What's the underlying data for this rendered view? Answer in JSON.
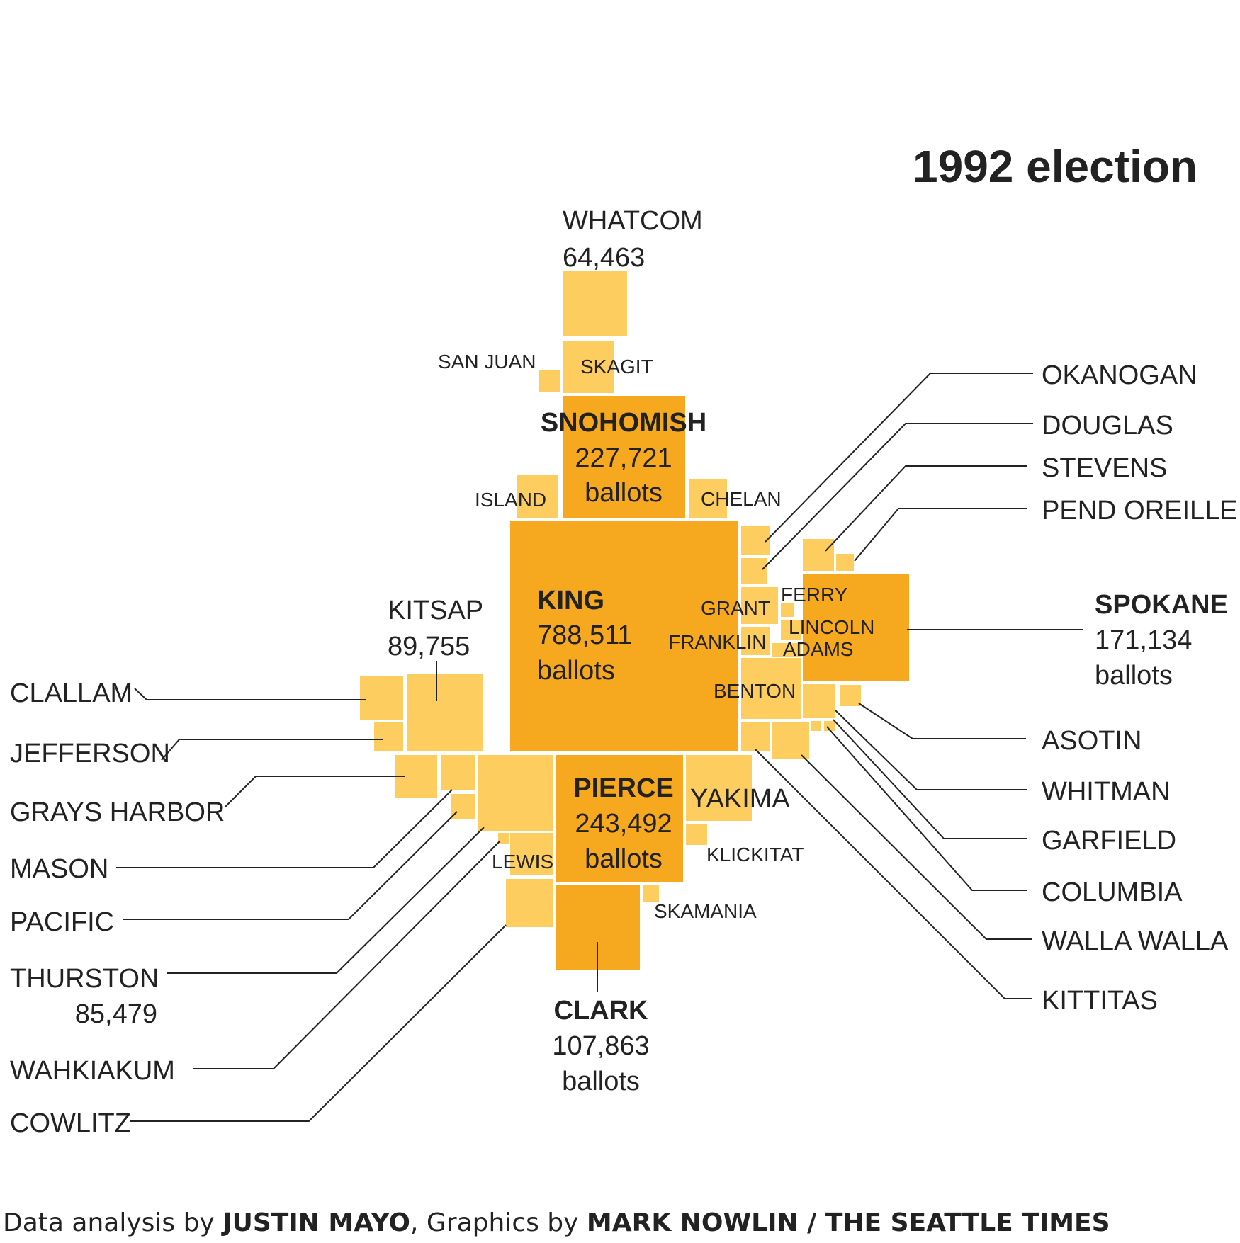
{
  "title": "1992 election",
  "colors": {
    "light": "#fdcd5f",
    "dark": "#f6a81f",
    "text": "#222222"
  },
  "counties": [
    {
      "id": "whatcom",
      "name": "WHATCOM",
      "value": "64,463"
    },
    {
      "id": "skagit",
      "name": "SKAGIT"
    },
    {
      "id": "san-juan",
      "name": "SAN JUAN"
    },
    {
      "id": "snohomish",
      "name": "SNOHOMISH",
      "value": "227,721",
      "unit": "ballots"
    },
    {
      "id": "island",
      "name": "ISLAND"
    },
    {
      "id": "chelan",
      "name": "CHELAN"
    },
    {
      "id": "king",
      "name": "KING",
      "value": "788,511",
      "unit": "ballots"
    },
    {
      "id": "kitsap",
      "name": "KITSAP",
      "value": "89,755"
    },
    {
      "id": "clallam",
      "name": "CLALLAM"
    },
    {
      "id": "jefferson",
      "name": "JEFFERSON"
    },
    {
      "id": "grays-harbor",
      "name": "GRAYS HARBOR"
    },
    {
      "id": "mason",
      "name": "MASON"
    },
    {
      "id": "pacific",
      "name": "PACIFIC"
    },
    {
      "id": "thurston",
      "name": "THURSTON",
      "value": "85,479"
    },
    {
      "id": "wahkiakum",
      "name": "WAHKIAKUM"
    },
    {
      "id": "cowlitz",
      "name": "COWLITZ"
    },
    {
      "id": "lewis",
      "name": "LEWIS"
    },
    {
      "id": "pierce",
      "name": "PIERCE",
      "value": "243,492",
      "unit": "ballots"
    },
    {
      "id": "yakima",
      "name": "YAKIMA"
    },
    {
      "id": "klickitat",
      "name": "KLICKITAT"
    },
    {
      "id": "skamania",
      "name": "SKAMANIA"
    },
    {
      "id": "clark",
      "name": "CLARK",
      "value": "107,863",
      "unit": "ballots"
    },
    {
      "id": "okanogan",
      "name": "OKANOGAN"
    },
    {
      "id": "douglas",
      "name": "DOUGLAS"
    },
    {
      "id": "stevens",
      "name": "STEVENS"
    },
    {
      "id": "pend-oreille",
      "name": "PEND OREILLE"
    },
    {
      "id": "grant",
      "name": "GRANT"
    },
    {
      "id": "ferry",
      "name": "FERRY"
    },
    {
      "id": "lincoln",
      "name": "LINCOLN"
    },
    {
      "id": "franklin",
      "name": "FRANKLIN"
    },
    {
      "id": "adams",
      "name": "ADAMS"
    },
    {
      "id": "benton",
      "name": "BENTON"
    },
    {
      "id": "spokane",
      "name": "SPOKANE",
      "value": "171,134",
      "unit": "ballots"
    },
    {
      "id": "asotin",
      "name": "ASOTIN"
    },
    {
      "id": "whitman",
      "name": "WHITMAN"
    },
    {
      "id": "garfield",
      "name": "GARFIELD"
    },
    {
      "id": "columbia",
      "name": "COLUMBIA"
    },
    {
      "id": "walla-walla",
      "name": "WALLA WALLA"
    },
    {
      "id": "kittitas",
      "name": "KITTITAS"
    }
  ],
  "credit": {
    "p1": "Data analysis by ",
    "n1": "JUSTIN MAYO",
    "p2": ", Graphics by ",
    "n2": "MARK NOWLIN / THE SEATTLE TIMES"
  }
}
